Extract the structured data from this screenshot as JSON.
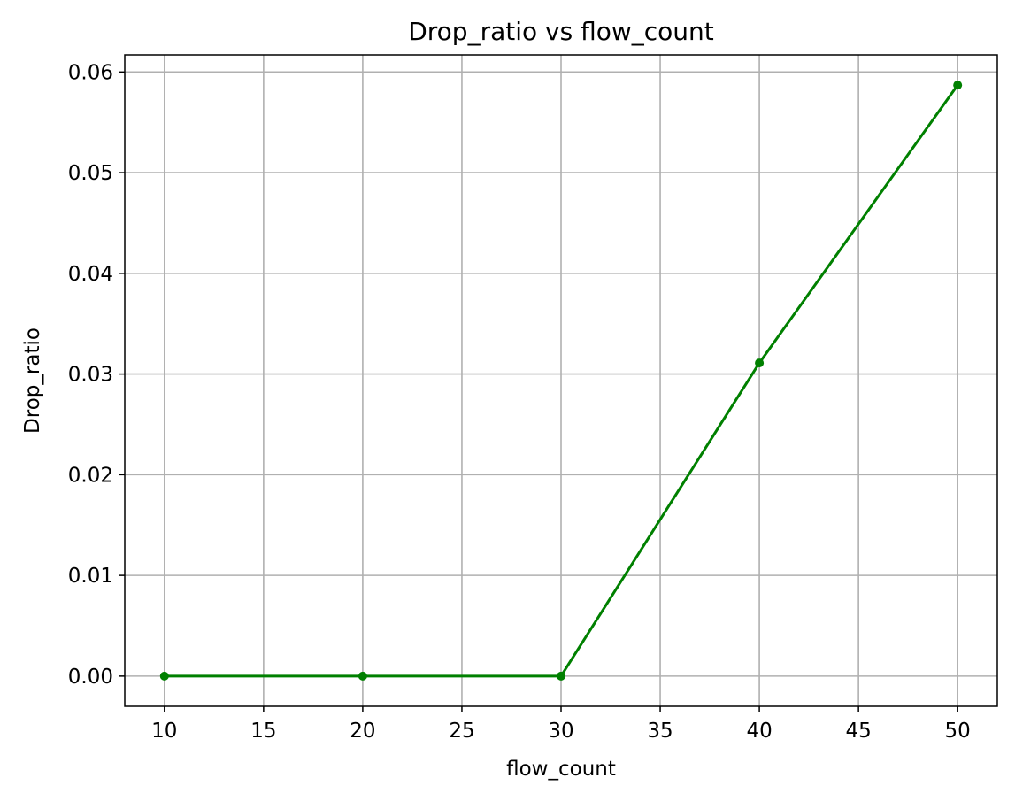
{
  "chart_data": {
    "type": "line",
    "title": "Drop_ratio vs flow_count",
    "xlabel": "flow_count",
    "ylabel": "Drop_ratio",
    "x": [
      10,
      20,
      30,
      40,
      50
    ],
    "series": [
      {
        "name": "Drop_ratio",
        "values": [
          0.0,
          0.0,
          0.0,
          0.0311,
          0.0587
        ],
        "color": "#008000",
        "marker": "circle"
      }
    ],
    "xlim": [
      8,
      52
    ],
    "ylim": [
      -0.003,
      0.0617
    ],
    "xticks": [
      10,
      15,
      20,
      25,
      30,
      35,
      40,
      45,
      50
    ],
    "xtick_labels": [
      "10",
      "15",
      "20",
      "25",
      "30",
      "35",
      "40",
      "45",
      "50"
    ],
    "yticks": [
      0.0,
      0.01,
      0.02,
      0.03,
      0.04,
      0.05,
      0.06
    ],
    "ytick_labels": [
      "0.00",
      "0.01",
      "0.02",
      "0.03",
      "0.04",
      "0.05",
      "0.06"
    ],
    "grid": true,
    "grid_color": "#b0b0b0",
    "axis_color": "#000000",
    "legend": "none"
  }
}
